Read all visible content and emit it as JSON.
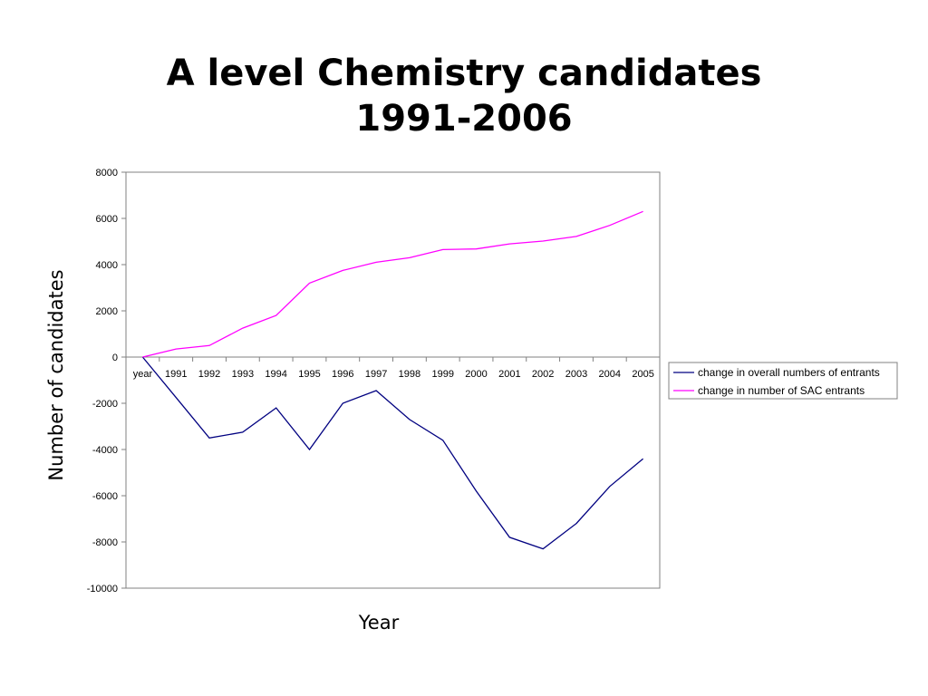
{
  "chart_data": {
    "type": "line",
    "title": [
      "A level Chemistry candidates",
      "1991-2006"
    ],
    "xlabel": "Year",
    "ylabel": "Number of candidates",
    "categories": [
      "year",
      "1991",
      "1992",
      "1993",
      "1994",
      "1995",
      "1996",
      "1997",
      "1998",
      "1999",
      "2000",
      "2001",
      "2002",
      "2003",
      "2004",
      "2005"
    ],
    "ylim": [
      -10000,
      8000
    ],
    "yticks": [
      8000,
      6000,
      4000,
      2000,
      0,
      -2000,
      -4000,
      -6000,
      -8000,
      -10000
    ],
    "legend_position": "right",
    "grid": false,
    "series": [
      {
        "name": "change in overall numbers of entrants",
        "color": "#000080",
        "values": [
          0,
          -1750,
          -3500,
          -3250,
          -2200,
          -4000,
          -2000,
          -1450,
          -2700,
          -3600,
          -5800,
          -7800,
          -8300,
          -7200,
          -5600,
          -4400
        ]
      },
      {
        "name": "change in number of SAC entrants",
        "color": "#ff00ff",
        "values": [
          0,
          350,
          500,
          1250,
          1800,
          3200,
          3750,
          4100,
          4300,
          4650,
          4680,
          4900,
          5020,
          5220,
          5700,
          6300
        ]
      }
    ]
  }
}
